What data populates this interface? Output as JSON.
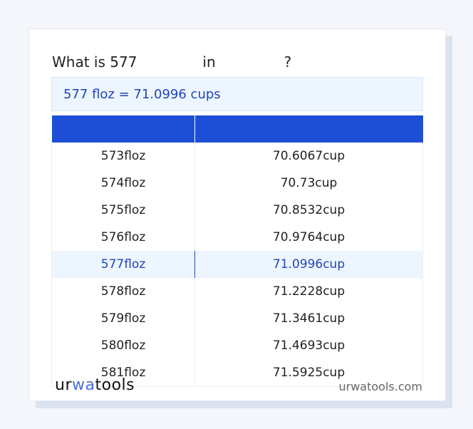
{
  "question": {
    "prefix": "What is 577",
    "mid": "in",
    "suffix": "?"
  },
  "result": "577 floz = 71.0996 cups",
  "table": {
    "headers": [
      "",
      ""
    ],
    "rows": [
      [
        "573floz",
        "70.6067cup"
      ],
      [
        "574floz",
        "70.73cup"
      ],
      [
        "575floz",
        "70.8532cup"
      ],
      [
        "576floz",
        "70.9764cup"
      ],
      [
        "577floz",
        "71.0996cup"
      ],
      [
        "578floz",
        "71.2228cup"
      ],
      [
        "579floz",
        "71.3461cup"
      ],
      [
        "580floz",
        "71.4693cup"
      ],
      [
        "581floz",
        "71.5925cup"
      ]
    ]
  },
  "highlight_row": 4,
  "footer": {
    "logo_a": "ur",
    "logo_b": "wa",
    "logo_c": "tools",
    "site": "urwatools.com"
  },
  "colors": {
    "accent": "#1d4fd6",
    "highlight_bg": "#edf5ff"
  }
}
